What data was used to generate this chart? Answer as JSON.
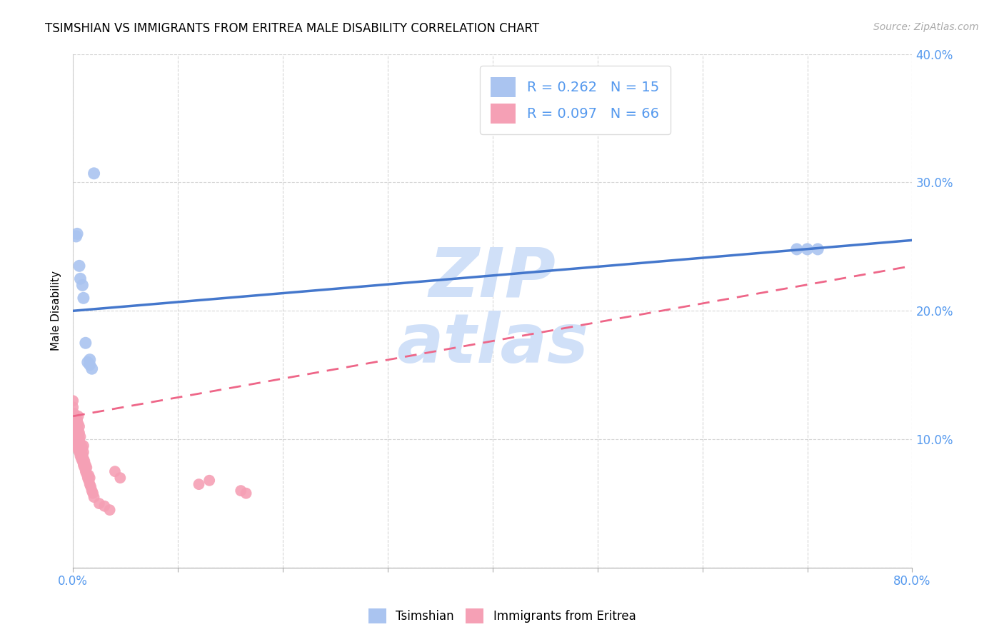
{
  "title": "TSIMSHIAN VS IMMIGRANTS FROM ERITREA MALE DISABILITY CORRELATION CHART",
  "source": "Source: ZipAtlas.com",
  "ylabel": "Male Disability",
  "xlim": [
    0.0,
    0.8
  ],
  "ylim": [
    0.0,
    0.4
  ],
  "xticks": [
    0.0,
    0.1,
    0.2,
    0.3,
    0.4,
    0.5,
    0.6,
    0.7,
    0.8
  ],
  "yticks": [
    0.0,
    0.1,
    0.2,
    0.3,
    0.4
  ],
  "background_color": "#ffffff",
  "grid_color": "#cccccc",
  "tsimshian_color": "#aac4f0",
  "eritrea_color": "#f5a0b5",
  "tsimshian_line_color": "#4477cc",
  "eritrea_line_color": "#ee6688",
  "watermark_color": "#d0e0f8",
  "legend_tsimshian_R": "0.262",
  "legend_tsimshian_N": "15",
  "legend_eritrea_R": "0.097",
  "legend_eritrea_N": "66",
  "tsimshian_label": "Tsimshian",
  "eritrea_label": "Immigrants from Eritrea",
  "tsimshian_x": [
    0.003,
    0.004,
    0.006,
    0.007,
    0.009,
    0.01,
    0.012,
    0.014,
    0.016,
    0.016,
    0.018,
    0.02,
    0.69,
    0.7,
    0.71
  ],
  "tsimshian_y": [
    0.258,
    0.26,
    0.235,
    0.225,
    0.22,
    0.21,
    0.175,
    0.16,
    0.158,
    0.162,
    0.155,
    0.307,
    0.248,
    0.248,
    0.248
  ],
  "eritrea_x": [
    0.0,
    0.0,
    0.001,
    0.001,
    0.001,
    0.002,
    0.002,
    0.002,
    0.003,
    0.003,
    0.003,
    0.003,
    0.004,
    0.004,
    0.004,
    0.004,
    0.004,
    0.005,
    0.005,
    0.005,
    0.005,
    0.005,
    0.005,
    0.006,
    0.006,
    0.006,
    0.006,
    0.006,
    0.007,
    0.007,
    0.007,
    0.007,
    0.008,
    0.008,
    0.008,
    0.009,
    0.009,
    0.009,
    0.01,
    0.01,
    0.01,
    0.01,
    0.011,
    0.011,
    0.012,
    0.012,
    0.013,
    0.013,
    0.014,
    0.015,
    0.015,
    0.016,
    0.016,
    0.017,
    0.018,
    0.019,
    0.02,
    0.025,
    0.03,
    0.035,
    0.04,
    0.045,
    0.12,
    0.13,
    0.16,
    0.165
  ],
  "eritrea_y": [
    0.125,
    0.13,
    0.11,
    0.115,
    0.12,
    0.1,
    0.108,
    0.112,
    0.098,
    0.103,
    0.108,
    0.115,
    0.095,
    0.1,
    0.105,
    0.11,
    0.115,
    0.092,
    0.097,
    0.102,
    0.107,
    0.112,
    0.118,
    0.09,
    0.095,
    0.1,
    0.105,
    0.11,
    0.087,
    0.092,
    0.097,
    0.102,
    0.085,
    0.09,
    0.095,
    0.083,
    0.088,
    0.093,
    0.08,
    0.085,
    0.09,
    0.095,
    0.078,
    0.083,
    0.075,
    0.08,
    0.073,
    0.078,
    0.07,
    0.068,
    0.072,
    0.065,
    0.07,
    0.063,
    0.06,
    0.058,
    0.055,
    0.05,
    0.048,
    0.045,
    0.075,
    0.07,
    0.065,
    0.068,
    0.06,
    0.058
  ],
  "tsim_line_x0": 0.0,
  "tsim_line_y0": 0.2,
  "tsim_line_x1": 0.8,
  "tsim_line_y1": 0.255,
  "erit_line_x0": 0.0,
  "erit_line_y0": 0.118,
  "erit_line_x1": 0.8,
  "erit_line_y1": 0.235
}
